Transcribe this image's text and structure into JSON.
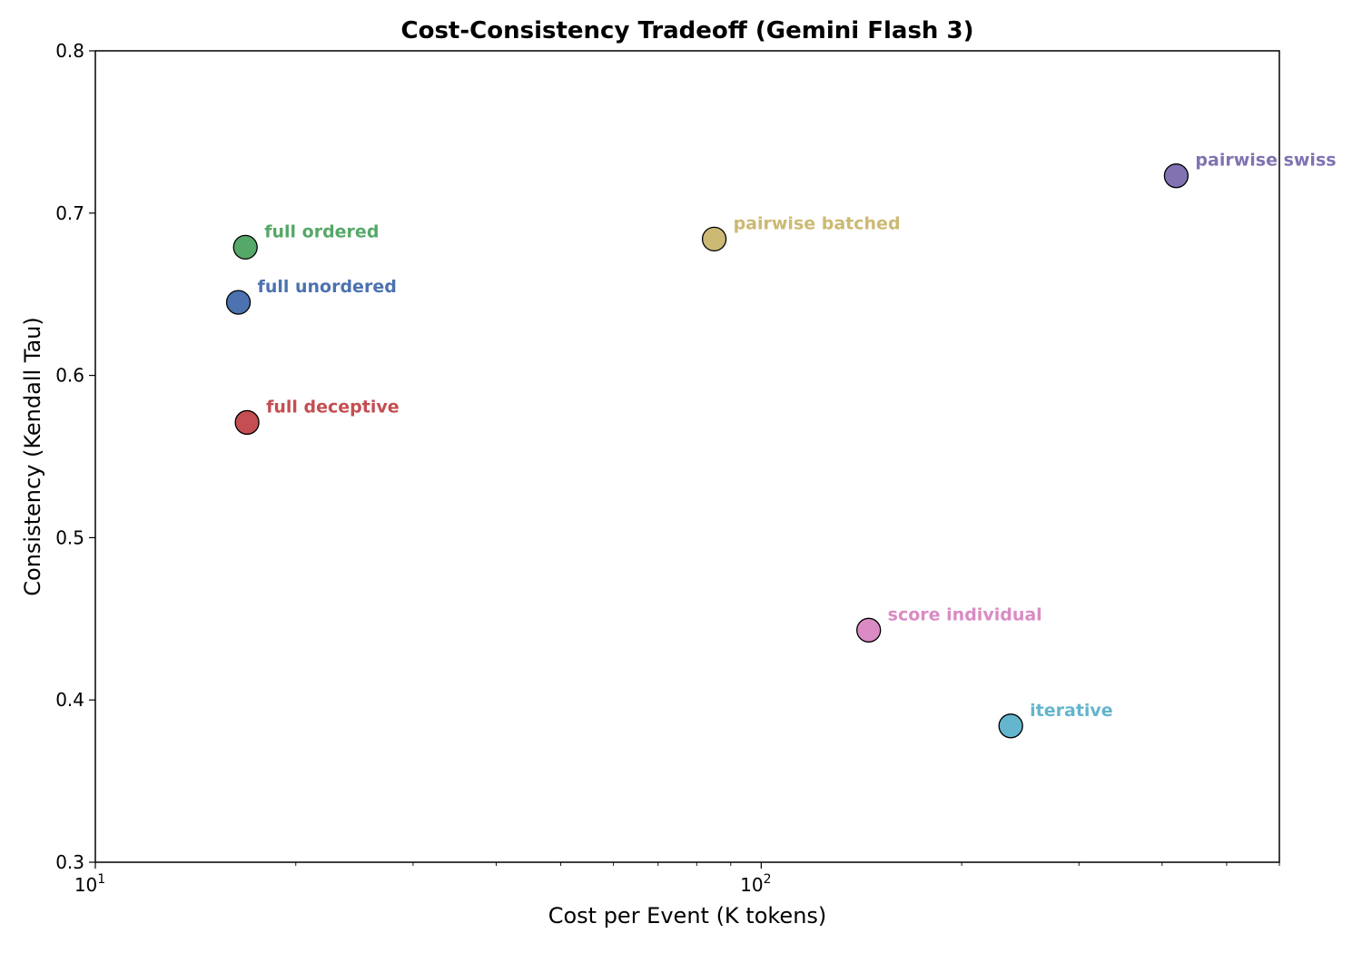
{
  "chart_data": {
    "type": "scatter",
    "title": "Cost-Consistency Tradeoff (Gemini Flash 3)",
    "xlabel": "Cost per Event (K tokens)",
    "ylabel": "Consistency (Kendall Tau)",
    "xscale": "log",
    "xlim": [
      10,
      600
    ],
    "ylim": [
      0.3,
      0.8
    ],
    "x_ticks": [
      {
        "value": 10,
        "base": "10",
        "exp": "1"
      },
      {
        "value": 100,
        "base": "10",
        "exp": "2"
      }
    ],
    "y_ticks": [
      {
        "value": 0.3,
        "label": "0.3"
      },
      {
        "value": 0.4,
        "label": "0.4"
      },
      {
        "value": 0.5,
        "label": "0.5"
      },
      {
        "value": 0.6,
        "label": "0.6"
      },
      {
        "value": 0.7,
        "label": "0.7"
      },
      {
        "value": 0.8,
        "label": "0.8"
      }
    ],
    "grid": false,
    "points": [
      {
        "name": "full ordered",
        "x": 16.8,
        "y": 0.679,
        "color": "#55a868"
      },
      {
        "name": "full unordered",
        "x": 16.4,
        "y": 0.645,
        "color": "#4c72b0"
      },
      {
        "name": "full deceptive",
        "x": 16.9,
        "y": 0.571,
        "color": "#c44e52"
      },
      {
        "name": "pairwise batched",
        "x": 85,
        "y": 0.684,
        "color": "#ccb974"
      },
      {
        "name": "pairwise swiss",
        "x": 420,
        "y": 0.723,
        "color": "#8172b2"
      },
      {
        "name": "score individual",
        "x": 145,
        "y": 0.443,
        "color": "#da8bc3"
      },
      {
        "name": "iterative",
        "x": 237,
        "y": 0.384,
        "color": "#64b5cd"
      }
    ]
  }
}
